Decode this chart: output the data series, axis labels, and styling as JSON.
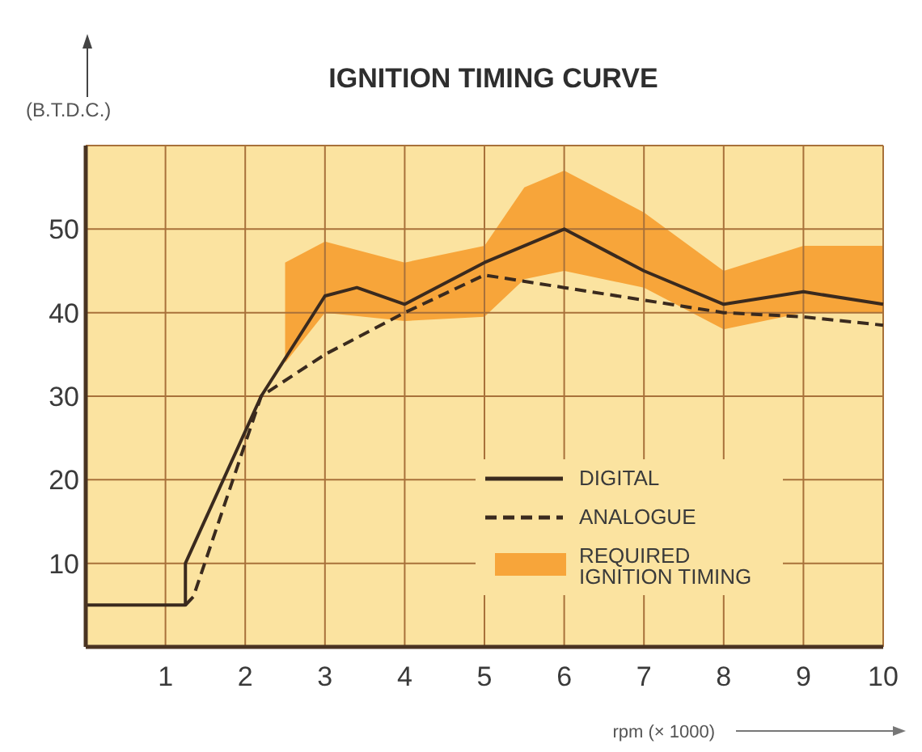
{
  "chart_data": {
    "type": "line",
    "title": "IGNITION TIMING CURVE",
    "ylabel": "(B.T.D.C.)",
    "xlabel": "rpm (× 1000)",
    "xlim": [
      0,
      10
    ],
    "ylim": [
      0,
      60
    ],
    "xticks": [
      1,
      2,
      3,
      4,
      5,
      6,
      7,
      8,
      9,
      10
    ],
    "yticks": [
      10,
      20,
      30,
      40,
      50
    ],
    "grid": true,
    "legend": "bottom right",
    "marker": "none",
    "series": [
      {
        "name": "DIGITAL",
        "color": "#3a2a1e",
        "line_style": "solid",
        "x": [
          0,
          1.25,
          1.25,
          2.2,
          3,
          3.4,
          4,
          5,
          6,
          7,
          8,
          9,
          10
        ],
        "values": [
          5,
          5,
          10,
          30,
          42,
          43,
          41,
          46,
          50,
          45,
          41,
          42.5,
          41
        ]
      },
      {
        "name": "ANALOGUE",
        "color": "#3a2a1e",
        "line_style": "dashed",
        "x": [
          1.25,
          1.35,
          2.2,
          3,
          4,
          5,
          6,
          7,
          8,
          9,
          10
        ],
        "values": [
          5,
          6,
          30,
          35,
          40,
          44.5,
          43,
          41.5,
          40,
          39.5,
          38.5
        ]
      },
      {
        "name": "REQUIRED IGNITION TIMING",
        "type": "area",
        "color": "#f7a53a",
        "x": [
          2.5,
          3,
          4,
          5,
          5.5,
          6,
          7,
          8,
          9,
          10
        ],
        "values": [
          null,
          null,
          null,
          null,
          null,
          null,
          null,
          null,
          null,
          null
        ],
        "lower": [
          34,
          40,
          39,
          39.5,
          44,
          45,
          43,
          38,
          40,
          40
        ],
        "upper": [
          46,
          48.5,
          46,
          48,
          55,
          57,
          52,
          45,
          48,
          48
        ]
      }
    ]
  }
}
